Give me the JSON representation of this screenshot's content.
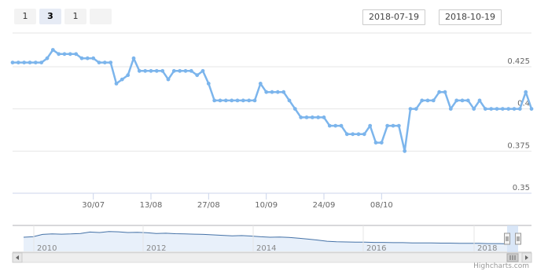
{
  "range_selector": {
    "buttons": [
      {
        "label": "1",
        "active": false
      },
      {
        "label": "3",
        "active": true
      },
      {
        "label": "1",
        "active": false
      },
      {
        "label": "",
        "active": false
      }
    ],
    "from_date": "2018-07-19",
    "to_date": "2018-10-19"
  },
  "credits": "Highcharts.com",
  "colors": {
    "series": "#7cb5ec",
    "navigator_line": "#4572a7",
    "navigator_mask": "#cfe0f5",
    "grid": "#e6e6e6"
  },
  "chart_data": {
    "type": "line",
    "title": "",
    "series": [
      {
        "values": [
          0.4275,
          0.4275,
          0.4275,
          0.4275,
          0.4275,
          0.4275,
          0.43,
          0.435,
          0.4325,
          0.4325,
          0.4325,
          0.4325,
          0.43,
          0.43,
          0.43,
          0.4275,
          0.4275,
          0.4275,
          0.415,
          0.4175,
          0.42,
          0.43,
          0.4225,
          0.4225,
          0.4225,
          0.4225,
          0.4225,
          0.4175,
          0.4225,
          0.4225,
          0.4225,
          0.4225,
          0.42,
          0.4225,
          0.415,
          0.405,
          0.405,
          0.405,
          0.405,
          0.405,
          0.405,
          0.405,
          0.405,
          0.415,
          0.41,
          0.41,
          0.41,
          0.41,
          0.405,
          0.4,
          0.395,
          0.395,
          0.395,
          0.395,
          0.395,
          0.39,
          0.39,
          0.39,
          0.385,
          0.385,
          0.385,
          0.385,
          0.39,
          0.38,
          0.38,
          0.39,
          0.39,
          0.39,
          0.375,
          0.4,
          0.4,
          0.405,
          0.405,
          0.405,
          0.41,
          0.41,
          0.4,
          0.405,
          0.405,
          0.405,
          0.4,
          0.405,
          0.4,
          0.4,
          0.4,
          0.4,
          0.4,
          0.4,
          0.4,
          0.41,
          0.4
        ]
      }
    ],
    "x_tick_labels": [
      "30/07",
      "13/08",
      "27/08",
      "10/09",
      "24/09",
      "08/10"
    ],
    "x_tick_index": [
      14,
      24,
      34,
      44,
      54,
      64
    ],
    "y_ticks": [
      0.35,
      0.375,
      0.4,
      0.425
    ],
    "y_tick_labels": [
      "0.35",
      "0.375",
      "0.4",
      "0.425"
    ],
    "ylim": [
      0.35,
      0.445
    ],
    "grid": true,
    "navigator": {
      "year_labels": [
        "2010",
        "2012",
        "2014",
        "2016",
        "2018"
      ],
      "values": [
        0.5,
        0.52,
        0.62,
        0.64,
        0.63,
        0.64,
        0.66,
        0.72,
        0.7,
        0.74,
        0.73,
        0.7,
        0.71,
        0.69,
        0.66,
        0.67,
        0.65,
        0.64,
        0.63,
        0.62,
        0.6,
        0.58,
        0.56,
        0.57,
        0.55,
        0.52,
        0.5,
        0.51,
        0.49,
        0.46,
        0.42,
        0.38,
        0.33,
        0.31,
        0.3,
        0.29,
        0.29,
        0.28,
        0.28,
        0.27,
        0.27,
        0.26,
        0.26,
        0.26,
        0.25,
        0.25,
        0.24,
        0.24,
        0.24,
        0.23,
        0.23,
        0.22
      ]
    }
  }
}
